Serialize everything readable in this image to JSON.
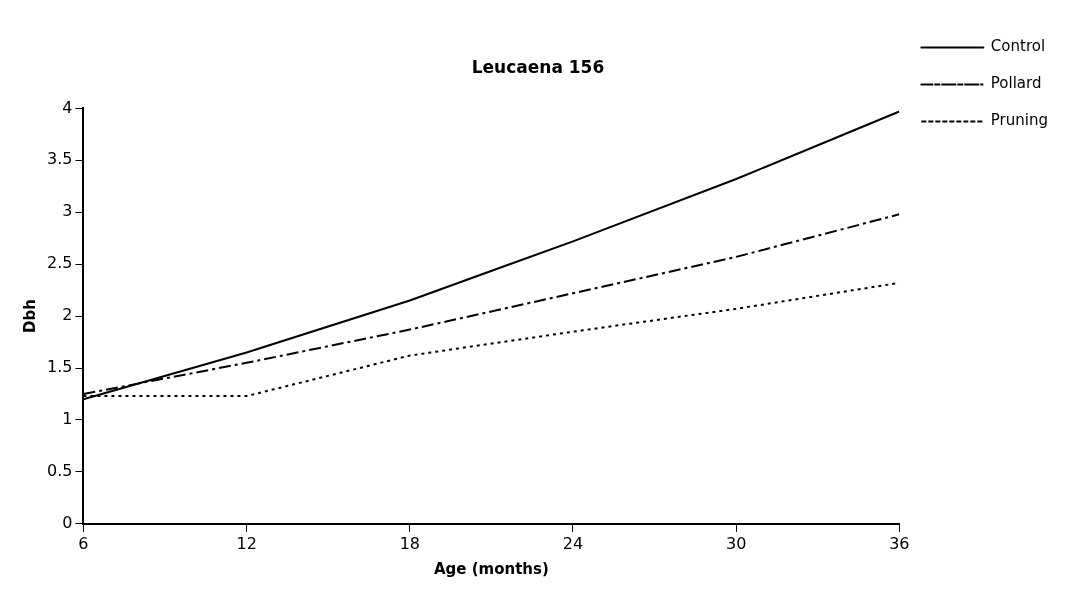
{
  "chart_data": {
    "type": "line",
    "title": "Leucaena 156",
    "xlabel": "Age (months)",
    "ylabel": "Dbh",
    "x": [
      6,
      12,
      18,
      24,
      30,
      36
    ],
    "series": [
      {
        "name": "Control",
        "color": "#000000",
        "line_style": "solid",
        "values": [
          1.2,
          1.65,
          2.15,
          2.72,
          3.32,
          3.97
        ]
      },
      {
        "name": "Pollard",
        "color": "#000000",
        "line_style": "dashed",
        "values": [
          1.25,
          1.55,
          1.87,
          2.22,
          2.57,
          2.98
        ]
      },
      {
        "name": "Pruning",
        "color": "#000000",
        "line_style": "dotted",
        "values": [
          1.23,
          1.23,
          1.62,
          1.85,
          2.07,
          2.32
        ]
      }
    ],
    "xlim": [
      6,
      36
    ],
    "xticks": [
      6,
      12,
      18,
      24,
      30,
      36
    ],
    "ylim": [
      0,
      4
    ],
    "yticks": [
      0,
      0.5,
      1,
      1.5,
      2,
      2.5,
      3,
      3.5,
      4
    ],
    "grid": false,
    "legend": "top right",
    "marker": "none"
  }
}
